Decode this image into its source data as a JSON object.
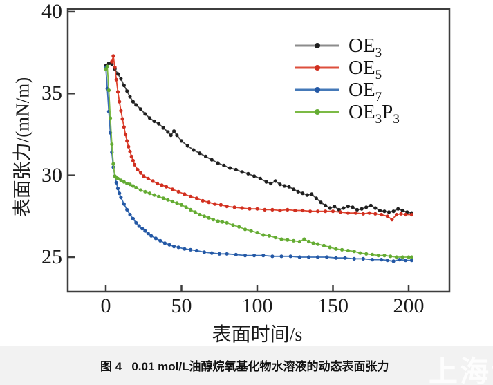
{
  "figure": {
    "caption": "图 4   0.01 mol/L油醇烷氧基化物水溶液的动态表面张力",
    "watermark": "上海谓数"
  },
  "colors": {
    "frame": "#3d3d3d",
    "caption_strip_bg": "#f2f2f2",
    "watermark": "#ffffff",
    "oe3": "#1f1f1f",
    "oe5": "#d7301f",
    "oe7": "#2458a5",
    "oe3p3": "#63ab33"
  },
  "chart_data": {
    "type": "line",
    "title": "",
    "xlabel": "表面时间/s",
    "ylabel": "表面张力/(mN/m)",
    "xticks": [
      0,
      50,
      100,
      150,
      200
    ],
    "yticks": [
      25,
      30,
      35,
      40
    ],
    "xlim": [
      -25,
      227
    ],
    "ylim": [
      22.8,
      40.2
    ],
    "grid": false,
    "legend_position": "upper-right-inside",
    "series": [
      {
        "name": "OE3",
        "label_parts": [
          [
            "OE",
            "3"
          ]
        ],
        "line_color": "#4a4a4a",
        "marker_color": "#1f1f1f",
        "legend_line_color": "#8c8c8c",
        "points": [
          [
            0,
            36.7
          ],
          [
            2,
            36.85
          ],
          [
            4,
            36.8
          ],
          [
            6,
            36.5
          ],
          [
            8,
            36.2
          ],
          [
            10,
            35.9
          ],
          [
            12,
            35.5
          ],
          [
            14,
            35.15
          ],
          [
            16,
            34.8
          ],
          [
            18,
            34.5
          ],
          [
            20,
            34.3
          ],
          [
            23,
            34.05
          ],
          [
            26,
            33.75
          ],
          [
            29,
            33.5
          ],
          [
            32,
            33.3
          ],
          [
            35,
            33.15
          ],
          [
            38,
            32.9
          ],
          [
            41,
            32.65
          ],
          [
            43,
            32.45
          ],
          [
            45,
            32.7
          ],
          [
            47,
            32.45
          ],
          [
            50,
            32.1
          ],
          [
            54,
            31.8
          ],
          [
            58,
            31.55
          ],
          [
            62,
            31.35
          ],
          [
            66,
            31.15
          ],
          [
            70,
            30.95
          ],
          [
            74,
            30.75
          ],
          [
            78,
            30.6
          ],
          [
            82,
            30.45
          ],
          [
            86,
            30.35
          ],
          [
            90,
            30.2
          ],
          [
            94,
            30.1
          ],
          [
            98,
            29.95
          ],
          [
            102,
            29.8
          ],
          [
            106,
            29.6
          ],
          [
            109,
            29.5
          ],
          [
            112,
            29.65
          ],
          [
            115,
            29.45
          ],
          [
            118,
            29.35
          ],
          [
            121,
            29.3
          ],
          [
            124,
            29.15
          ],
          [
            127,
            29.0
          ],
          [
            130,
            28.9
          ],
          [
            133,
            28.8
          ],
          [
            136,
            28.85
          ],
          [
            139,
            28.6
          ],
          [
            142,
            28.35
          ],
          [
            145,
            28.15
          ],
          [
            148,
            28.0
          ],
          [
            151,
            28.1
          ],
          [
            154,
            27.9
          ],
          [
            157,
            28.0
          ],
          [
            160,
            28.1
          ],
          [
            163,
            28.05
          ],
          [
            166,
            27.9
          ],
          [
            169,
            27.95
          ],
          [
            172,
            28.05
          ],
          [
            175,
            28.15
          ],
          [
            178,
            28.0
          ],
          [
            181,
            27.85
          ],
          [
            184,
            27.8
          ],
          [
            187,
            27.75
          ],
          [
            190,
            27.8
          ],
          [
            193,
            27.95
          ],
          [
            196,
            27.85
          ],
          [
            199,
            27.75
          ],
          [
            202,
            27.7
          ]
        ]
      },
      {
        "name": "OE5",
        "label_parts": [
          [
            "OE",
            "5"
          ]
        ],
        "line_color": "#e0452f",
        "marker_color": "#d02f20",
        "legend_line_color": "#dd4f3c",
        "points": [
          [
            4,
            36.95
          ],
          [
            5,
            37.3
          ],
          [
            6,
            36.6
          ],
          [
            7,
            35.85
          ],
          [
            8,
            35.1
          ],
          [
            9,
            34.5
          ],
          [
            10,
            33.95
          ],
          [
            11,
            33.45
          ],
          [
            12,
            32.95
          ],
          [
            13,
            32.5
          ],
          [
            14,
            32.1
          ],
          [
            15,
            31.75
          ],
          [
            16,
            31.45
          ],
          [
            17,
            31.15
          ],
          [
            18,
            30.9
          ],
          [
            19,
            30.65
          ],
          [
            21,
            30.35
          ],
          [
            23,
            30.15
          ],
          [
            25,
            29.95
          ],
          [
            28,
            29.8
          ],
          [
            31,
            29.65
          ],
          [
            34,
            29.5
          ],
          [
            37,
            29.4
          ],
          [
            40,
            29.3
          ],
          [
            44,
            29.15
          ],
          [
            48,
            29.0
          ],
          [
            52,
            28.85
          ],
          [
            56,
            28.7
          ],
          [
            60,
            28.6
          ],
          [
            64,
            28.45
          ],
          [
            68,
            28.35
          ],
          [
            72,
            28.25
          ],
          [
            76,
            28.2
          ],
          [
            80,
            28.1
          ],
          [
            85,
            28.05
          ],
          [
            90,
            28.0
          ],
          [
            95,
            27.95
          ],
          [
            100,
            27.95
          ],
          [
            105,
            27.9
          ],
          [
            110,
            27.9
          ],
          [
            115,
            27.85
          ],
          [
            120,
            27.9
          ],
          [
            125,
            27.85
          ],
          [
            130,
            27.85
          ],
          [
            135,
            27.8
          ],
          [
            140,
            27.8
          ],
          [
            145,
            27.8
          ],
          [
            150,
            27.8
          ],
          [
            155,
            27.75
          ],
          [
            160,
            27.7
          ],
          [
            165,
            27.7
          ],
          [
            170,
            27.65
          ],
          [
            174,
            27.7
          ],
          [
            178,
            27.65
          ],
          [
            182,
            27.6
          ],
          [
            186,
            27.5
          ],
          [
            189,
            27.3
          ],
          [
            192,
            27.6
          ],
          [
            195,
            27.65
          ],
          [
            198,
            27.6
          ],
          [
            202,
            27.6
          ]
        ]
      },
      {
        "name": "OE7",
        "label_parts": [
          [
            "OE",
            "7"
          ]
        ],
        "line_color": "#3a6fb5",
        "marker_color": "#2458a5",
        "legend_line_color": "#4579b8",
        "points": [
          [
            0,
            36.6
          ],
          [
            1,
            35.3
          ],
          [
            2,
            33.9
          ],
          [
            3,
            32.6
          ],
          [
            4,
            31.4
          ],
          [
            5,
            30.5
          ],
          [
            6,
            29.95
          ],
          [
            7,
            29.55
          ],
          [
            8,
            29.2
          ],
          [
            9,
            28.9
          ],
          [
            10,
            28.65
          ],
          [
            12,
            28.25
          ],
          [
            14,
            27.9
          ],
          [
            16,
            27.6
          ],
          [
            18,
            27.35
          ],
          [
            20,
            27.1
          ],
          [
            22,
            26.9
          ],
          [
            24,
            26.75
          ],
          [
            26,
            26.6
          ],
          [
            28,
            26.45
          ],
          [
            30,
            26.3
          ],
          [
            33,
            26.15
          ],
          [
            36,
            26.0
          ],
          [
            39,
            25.85
          ],
          [
            42,
            25.75
          ],
          [
            45,
            25.65
          ],
          [
            48,
            25.6
          ],
          [
            52,
            25.5
          ],
          [
            56,
            25.45
          ],
          [
            60,
            25.4
          ],
          [
            65,
            25.3
          ],
          [
            70,
            25.25
          ],
          [
            75,
            25.2
          ],
          [
            80,
            25.2
          ],
          [
            86,
            25.15
          ],
          [
            92,
            25.1
          ],
          [
            98,
            25.1
          ],
          [
            104,
            25.1
          ],
          [
            110,
            25.05
          ],
          [
            116,
            25.05
          ],
          [
            122,
            25.05
          ],
          [
            128,
            25.0
          ],
          [
            134,
            25.0
          ],
          [
            140,
            25.0
          ],
          [
            146,
            25.0
          ],
          [
            152,
            24.95
          ],
          [
            158,
            24.95
          ],
          [
            164,
            24.9
          ],
          [
            170,
            24.9
          ],
          [
            176,
            24.85
          ],
          [
            182,
            24.85
          ],
          [
            186,
            24.8
          ],
          [
            190,
            24.75
          ],
          [
            194,
            24.85
          ],
          [
            198,
            24.8
          ],
          [
            202,
            24.8
          ]
        ]
      },
      {
        "name": "OE3P3",
        "label_parts": [
          [
            "OE",
            "3"
          ],
          [
            "P",
            "3"
          ]
        ],
        "line_color": "#7cba45",
        "marker_color": "#63ab33",
        "legend_line_color": "#7cba45",
        "points": [
          [
            0,
            36.5
          ],
          [
            1,
            36.65
          ],
          [
            2,
            35.2
          ],
          [
            3,
            33.5
          ],
          [
            4,
            31.9
          ],
          [
            5,
            30.7
          ],
          [
            6,
            29.95
          ],
          [
            7,
            29.85
          ],
          [
            8,
            29.8
          ],
          [
            10,
            29.7
          ],
          [
            12,
            29.6
          ],
          [
            14,
            29.5
          ],
          [
            16,
            29.45
          ],
          [
            18,
            29.35
          ],
          [
            20,
            29.25
          ],
          [
            23,
            29.1
          ],
          [
            26,
            29.0
          ],
          [
            29,
            28.9
          ],
          [
            32,
            28.8
          ],
          [
            35,
            28.7
          ],
          [
            38,
            28.6
          ],
          [
            41,
            28.5
          ],
          [
            44,
            28.4
          ],
          [
            47,
            28.3
          ],
          [
            50,
            28.2
          ],
          [
            53,
            28.05
          ],
          [
            56,
            27.9
          ],
          [
            59,
            27.75
          ],
          [
            62,
            27.6
          ],
          [
            65,
            27.5
          ],
          [
            68,
            27.4
          ],
          [
            71,
            27.3
          ],
          [
            74,
            27.2
          ],
          [
            77,
            27.15
          ],
          [
            80,
            27.1
          ],
          [
            84,
            26.95
          ],
          [
            88,
            26.85
          ],
          [
            92,
            26.7
          ],
          [
            96,
            26.6
          ],
          [
            100,
            26.5
          ],
          [
            104,
            26.35
          ],
          [
            108,
            26.3
          ],
          [
            112,
            26.2
          ],
          [
            116,
            26.1
          ],
          [
            120,
            26.05
          ],
          [
            124,
            26.0
          ],
          [
            128,
            25.95
          ],
          [
            131,
            26.1
          ],
          [
            134,
            25.95
          ],
          [
            137,
            25.85
          ],
          [
            140,
            25.8
          ],
          [
            144,
            25.7
          ],
          [
            148,
            25.6
          ],
          [
            152,
            25.5
          ],
          [
            156,
            25.45
          ],
          [
            160,
            25.4
          ],
          [
            164,
            25.35
          ],
          [
            168,
            25.25
          ],
          [
            172,
            25.2
          ],
          [
            176,
            25.15
          ],
          [
            180,
            25.1
          ],
          [
            184,
            25.1
          ],
          [
            188,
            25.05
          ],
          [
            192,
            25.0
          ],
          [
            196,
            25.0
          ],
          [
            200,
            25.0
          ],
          [
            202,
            25.0
          ]
        ]
      }
    ]
  }
}
